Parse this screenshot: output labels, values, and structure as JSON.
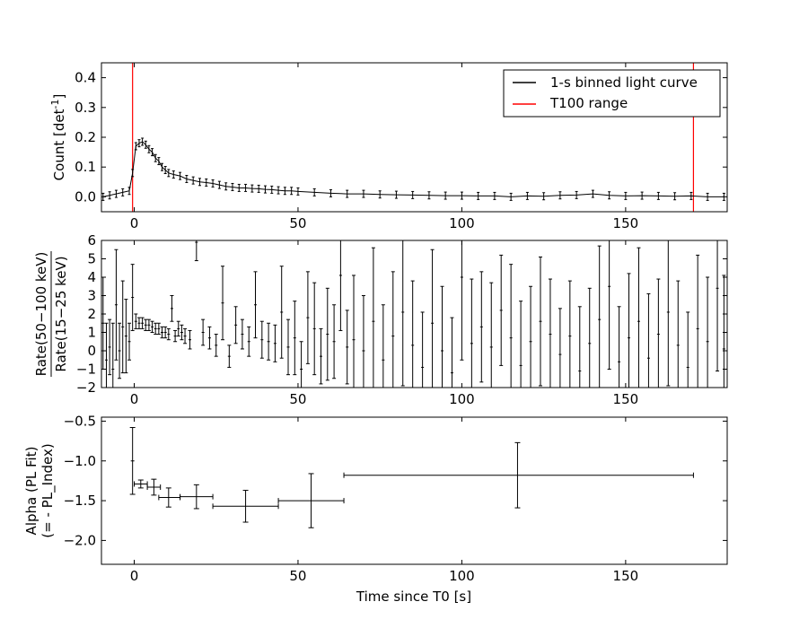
{
  "chart_data": [
    {
      "type": "line",
      "panel": "top",
      "xlabel": "",
      "ylabel": "Count [det",
      "ylabel_sup": "-1",
      "ylabel_end": "]",
      "xlim": [
        -10,
        181
      ],
      "ylim": [
        -0.05,
        0.45
      ],
      "xticks": [
        0,
        50,
        100,
        150
      ],
      "xtick_labels": [
        "0",
        "50",
        "100",
        "150"
      ],
      "yticks": [
        0.0,
        0.1,
        0.2,
        0.3,
        0.4
      ],
      "ytick_labels": [
        "0.0",
        "0.1",
        "0.2",
        "0.3",
        "0.4"
      ],
      "legend": {
        "placement": "top-right",
        "entries": [
          {
            "label": "1-s binned light curve",
            "color": "#000000"
          },
          {
            "label": "T100 range",
            "color": "#ff0000"
          }
        ]
      },
      "vlines": [
        -0.5,
        170.7
      ],
      "series": [
        {
          "name": "1-s binned light curve",
          "color": "#000000",
          "x": [
            -9.5,
            -7.5,
            -5.5,
            -3.5,
            -1.5,
            -0.5,
            0.5,
            1.5,
            2.5,
            3.5,
            4.5,
            5.5,
            6.5,
            7.5,
            8.5,
            9.5,
            10.5,
            12,
            14,
            16,
            18,
            20,
            22,
            24,
            26,
            28,
            30,
            32,
            34,
            36,
            38,
            40,
            42,
            44,
            46,
            48,
            50,
            55,
            60,
            65,
            70,
            75,
            80,
            85,
            90,
            95,
            100,
            105,
            110,
            115,
            120,
            125,
            130,
            135,
            140,
            145,
            150,
            155,
            160,
            165,
            170,
            175,
            180
          ],
          "y": [
            0.0,
            0.005,
            0.01,
            0.015,
            0.02,
            0.08,
            0.17,
            0.18,
            0.185,
            0.175,
            0.16,
            0.15,
            0.13,
            0.12,
            0.1,
            0.09,
            0.08,
            0.075,
            0.07,
            0.06,
            0.055,
            0.05,
            0.048,
            0.045,
            0.04,
            0.035,
            0.033,
            0.03,
            0.03,
            0.028,
            0.027,
            0.025,
            0.024,
            0.022,
            0.02,
            0.02,
            0.018,
            0.015,
            0.012,
            0.01,
            0.01,
            0.008,
            0.007,
            0.006,
            0.005,
            0.004,
            0.004,
            0.003,
            0.003,
            0.0,
            0.003,
            0.002,
            0.005,
            0.006,
            0.01,
            0.005,
            0.003,
            0.004,
            0.003,
            0.002,
            0.003,
            0.0,
            0.0
          ],
          "yerr": 0.012
        }
      ]
    },
    {
      "type": "scatter",
      "panel": "middle",
      "ylabel_num": "Rate(50−100 keV)",
      "ylabel_den": "Rate(15−25 keV)",
      "xlim": [
        -10,
        181
      ],
      "ylim": [
        -2,
        6
      ],
      "xticks": [
        0,
        50,
        100,
        150
      ],
      "xtick_labels": [
        "0",
        "50",
        "100",
        "150"
      ],
      "yticks": [
        -2,
        -1,
        0,
        1,
        2,
        3,
        4,
        5,
        6
      ],
      "ytick_labels": [
        "−2",
        "−1",
        "0",
        "1",
        "2",
        "3",
        "4",
        "5",
        "6"
      ],
      "series": [
        {
          "name": "",
          "x": [
            -9.5,
            -8.5,
            -7.5,
            -6.5,
            -5.5,
            -4.5,
            -3.5,
            -2.5,
            -1.5,
            -0.5,
            0.5,
            1.5,
            2.5,
            3.5,
            4.5,
            5.5,
            6.5,
            7.5,
            8.5,
            9.5,
            10.5,
            11.5,
            12.5,
            13.5,
            14.5,
            15.5,
            17,
            19,
            21,
            23,
            25,
            27,
            29,
            31,
            33,
            35,
            37,
            39,
            41,
            43,
            45,
            47,
            49,
            51,
            53,
            55,
            57,
            59,
            61,
            63,
            65,
            67,
            70,
            73,
            76,
            79,
            82,
            85,
            88,
            91,
            94,
            97,
            100,
            103,
            106,
            109,
            112,
            115,
            118,
            121,
            124,
            127,
            130,
            133,
            136,
            139,
            142,
            145,
            148,
            151,
            154,
            157,
            160,
            163,
            166,
            169,
            172,
            175,
            178,
            180
          ],
          "y": [
            1.5,
            -0.5,
            0.2,
            -1.0,
            2.5,
            0.0,
            1.3,
            0.8,
            0.5,
            2.9,
            1.6,
            1.5,
            1.5,
            1.4,
            1.4,
            1.3,
            1.2,
            1.2,
            1.0,
            1.0,
            0.9,
            2.3,
            0.8,
            1.2,
            1.0,
            0.8,
            0.6,
            5.9,
            1.0,
            0.7,
            0.3,
            2.6,
            -0.3,
            1.4,
            0.9,
            0.5,
            2.5,
            0.6,
            0.5,
            0.4,
            2.1,
            0.2,
            0.7,
            -1.0,
            1.8,
            1.2,
            -0.3,
            0.9,
            0.5,
            4.1,
            0.2,
            0.6,
            0.0,
            1.6,
            -0.5,
            0.8,
            2.1,
            0.3,
            -0.9,
            1.5,
            0.0,
            -1.2,
            4.0,
            0.4,
            1.3,
            0.2,
            2.2,
            0.7,
            -0.8,
            0.5,
            1.6,
            0.9,
            -0.2,
            0.8,
            -1.1,
            0.4,
            1.7,
            3.5,
            -0.6,
            0.7,
            1.6,
            -0.4,
            0.9,
            2.1,
            0.3,
            -0.9,
            1.2,
            0.5,
            3.4,
            0.1
          ],
          "yerr": [
            2.5,
            2.0,
            1.5,
            2.5,
            3.0,
            1.5,
            2.5,
            2.0,
            1.0,
            1.8,
            0.4,
            0.3,
            0.3,
            0.3,
            0.3,
            0.3,
            0.3,
            0.3,
            0.3,
            0.3,
            0.3,
            0.7,
            0.3,
            0.4,
            0.4,
            0.4,
            0.5,
            1.0,
            0.7,
            0.6,
            0.6,
            2.0,
            0.6,
            1.0,
            0.8,
            0.8,
            1.8,
            1.0,
            1.0,
            1.0,
            2.5,
            1.5,
            2.0,
            1.5,
            2.5,
            2.5,
            1.5,
            2.5,
            2.0,
            3.0,
            2.0,
            3.5,
            3.0,
            4.0,
            3.0,
            3.5,
            4.0,
            3.5,
            3.0,
            4.0,
            3.5,
            3.0,
            4.5,
            3.5,
            3.0,
            3.5,
            3.0,
            4.0,
            3.5,
            3.0,
            3.5,
            3.0,
            2.5,
            3.0,
            3.5,
            3.0,
            4.0,
            4.5,
            3.0,
            3.5,
            4.0,
            3.5,
            3.0,
            4.0,
            3.5,
            3.0,
            4.0,
            3.5,
            4.5,
            4.0
          ]
        }
      ]
    },
    {
      "type": "scatter",
      "panel": "bottom",
      "xlabel": "Time since T0 [s]",
      "ylabel_line1": "Alpha (PL Fit)",
      "ylabel_line2": "(= - PL_Index)",
      "xlim": [
        -10,
        181
      ],
      "ylim": [
        -2.3,
        -0.45
      ],
      "xticks": [
        0,
        50,
        100,
        150
      ],
      "xtick_labels": [
        "0",
        "50",
        "100",
        "150"
      ],
      "yticks": [
        -2.0,
        -1.5,
        -1.0,
        -0.5
      ],
      "ytick_labels": [
        "−2.0",
        "−1.5",
        "−1.0",
        "−0.5"
      ],
      "series": [
        {
          "name": "",
          "points": [
            {
              "x": -0.5,
              "xerr": [
                0.0,
                0.0
              ],
              "y": -1.0,
              "yerr": 0.42
            },
            {
              "x": 2.0,
              "xlo": 0.0,
              "xhi": 4.0,
              "y": -1.29,
              "yerr": 0.05
            },
            {
              "x": 6.0,
              "xlo": 4.0,
              "xhi": 8.0,
              "y": -1.33,
              "yerr": 0.1
            },
            {
              "x": 10.5,
              "xlo": 7.5,
              "xhi": 14.0,
              "y": -1.46,
              "yerr": 0.12
            },
            {
              "x": 19.0,
              "xlo": 14.0,
              "xhi": 24.0,
              "y": -1.45,
              "yerr": 0.15
            },
            {
              "x": 34.0,
              "xlo": 24.0,
              "xhi": 44.0,
              "y": -1.57,
              "yerr": 0.2
            },
            {
              "x": 54.0,
              "xlo": 44.0,
              "xhi": 64.0,
              "y": -1.5,
              "yerr": 0.34
            },
            {
              "x": 117.0,
              "xlo": 64.0,
              "xhi": 170.7,
              "y": -1.18,
              "yerr": 0.41
            }
          ]
        }
      ]
    }
  ]
}
